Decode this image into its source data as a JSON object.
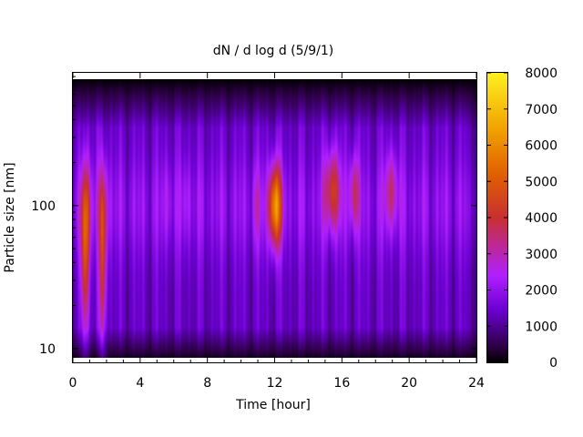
{
  "chart_data": {
    "type": "heatmap",
    "title": "dN / d log d (5/9/1)",
    "xlabel": "Time [hour]",
    "ylabel": "Particle size [nm]",
    "xlim": [
      0,
      24
    ],
    "ylim_nm": [
      8,
      850
    ],
    "y_scale": "log",
    "x_ticks": [
      "0",
      "4",
      "8",
      "12",
      "16",
      "20",
      "24"
    ],
    "x_tick_values": [
      0,
      4,
      8,
      12,
      16,
      20,
      24
    ],
    "y_ticks": [
      "10",
      "100"
    ],
    "y_tick_values": [
      10,
      100
    ],
    "colorbar": {
      "range": [
        0,
        8000
      ],
      "ticks": [
        "0",
        "1000",
        "2000",
        "3000",
        "4000",
        "5000",
        "6000",
        "7000",
        "8000"
      ],
      "tick_values": [
        0,
        1000,
        2000,
        3000,
        4000,
        5000,
        6000,
        7000,
        8000
      ]
    },
    "grid": false,
    "background_level": 1900,
    "top_fade_nm": 350,
    "plumes": [
      {
        "time_h": 0.7,
        "peak_nm": 40,
        "peak": 3000,
        "width_h": 0.25,
        "log_width": 0.55
      },
      {
        "time_h": 0.75,
        "peak_nm": 100,
        "peak": 1600,
        "width_h": 0.35,
        "log_width": 0.35
      },
      {
        "time_h": 1.75,
        "peak_nm": 35,
        "peak": 2600,
        "width_h": 0.22,
        "log_width": 0.55
      },
      {
        "time_h": 1.8,
        "peak_nm": 100,
        "peak": 1300,
        "width_h": 0.3,
        "log_width": 0.35
      },
      {
        "time_h": 5.6,
        "peak_nm": 110,
        "peak": 500,
        "width_h": 0.3,
        "log_width": 0.3
      },
      {
        "time_h": 6.7,
        "peak_nm": 110,
        "peak": 500,
        "width_h": 0.3,
        "log_width": 0.3
      },
      {
        "time_h": 12.0,
        "peak_nm": 100,
        "peak": 4500,
        "width_h": 0.38,
        "log_width": 0.28
      },
      {
        "time_h": 15.4,
        "peak_nm": 130,
        "peak": 2600,
        "width_h": 0.45,
        "log_width": 0.28
      },
      {
        "time_h": 16.7,
        "peak_nm": 125,
        "peak": 2000,
        "width_h": 0.28,
        "log_width": 0.27
      },
      {
        "time_h": 18.9,
        "peak_nm": 130,
        "peak": 1700,
        "width_h": 0.38,
        "log_width": 0.27
      },
      {
        "time_h": 10.9,
        "peak_nm": 100,
        "peak": 800,
        "width_h": 0.3,
        "log_width": 0.3
      }
    ],
    "colors": {
      "stops": [
        "#000000",
        "#2a0040",
        "#6a00d0",
        "#b020ff",
        "#c83030",
        "#e06000",
        "#f0a000",
        "#fff020"
      ],
      "stop_levels": [
        0,
        0.05,
        0.18,
        0.3,
        0.5,
        0.65,
        0.8,
        1.0
      ]
    }
  }
}
